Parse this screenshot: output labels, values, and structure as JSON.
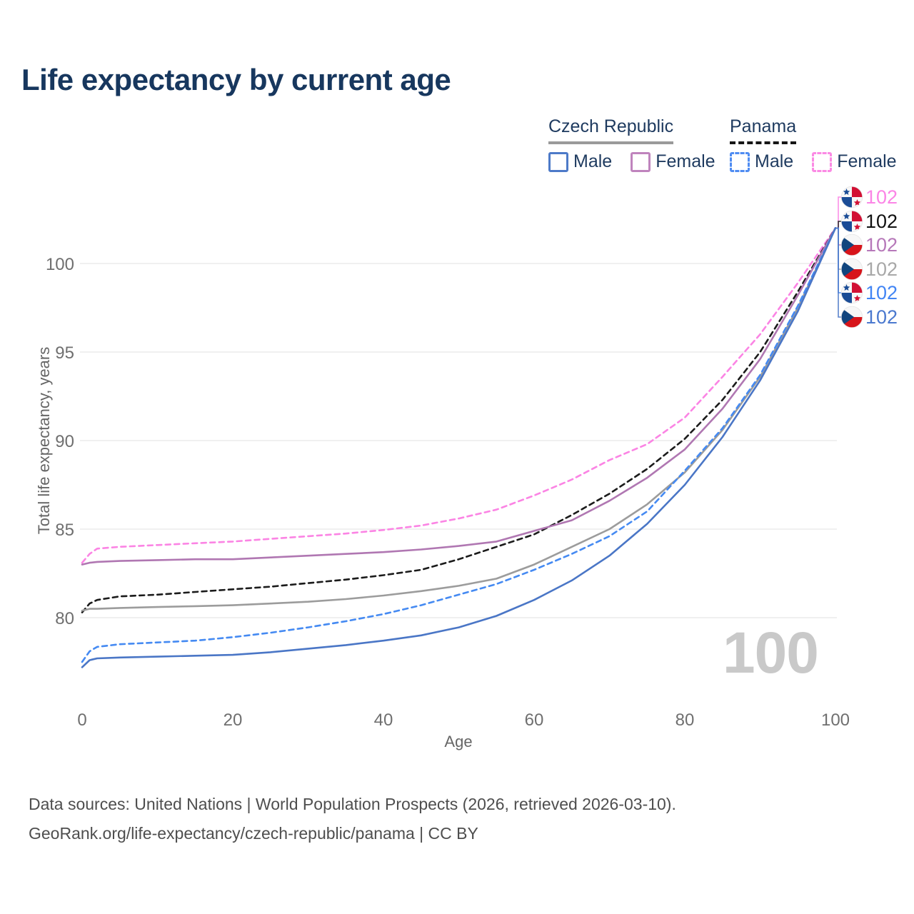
{
  "title": "Life expectancy by current age",
  "legend": {
    "groups": [
      {
        "title": "Czech Republic",
        "line": {
          "color": "#9a9a9a",
          "dashed": false
        },
        "items": [
          {
            "label": "Male",
            "color": "#4d7ac8",
            "dashed": false
          },
          {
            "label": "Female",
            "color": "#bf84bd",
            "dashed": false
          }
        ]
      },
      {
        "title": "Panama",
        "line": {
          "color": "#161616",
          "dashed": true
        },
        "items": [
          {
            "label": "Male",
            "color": "#4f8cf2",
            "dashed": true
          },
          {
            "label": "Female",
            "color": "#fb8ae4",
            "dashed": true
          }
        ]
      }
    ]
  },
  "chart_data": {
    "type": "line",
    "title": "Life expectancy by current age",
    "xlabel": "Age",
    "ylabel": "Total life expectancy, years",
    "x_ticks": [
      0,
      20,
      40,
      60,
      80,
      100
    ],
    "y_ticks": [
      80,
      85,
      90,
      95,
      100
    ],
    "xlim": [
      0,
      100
    ],
    "ylim": [
      77,
      103.5
    ],
    "grid": "horizontal",
    "watermark": "100",
    "ages": [
      0,
      1,
      2,
      5,
      10,
      15,
      20,
      25,
      30,
      35,
      40,
      45,
      50,
      55,
      60,
      65,
      70,
      75,
      80,
      85,
      90,
      95,
      100
    ],
    "series": [
      {
        "id": "panama-female",
        "name": "Panama Female",
        "country": "Panama",
        "sex": "Female",
        "color": "#fb84e4",
        "label_color": "#fb85e6",
        "dashed": true,
        "flag": "panama",
        "end_label": "102",
        "values": [
          83.1,
          83.6,
          83.9,
          84.0,
          84.1,
          84.2,
          84.3,
          84.45,
          84.6,
          84.75,
          84.95,
          85.2,
          85.6,
          86.1,
          86.9,
          87.8,
          88.9,
          89.8,
          91.3,
          93.6,
          96.0,
          98.9,
          102
        ]
      },
      {
        "id": "panama-total",
        "name": "Panama",
        "country": "Panama",
        "sex": "Both",
        "color": "#1b1b1b",
        "label_color": "#111111",
        "dashed": true,
        "flag": "panama",
        "end_label": "102",
        "values": [
          80.3,
          80.8,
          81.0,
          81.2,
          81.3,
          81.45,
          81.6,
          81.75,
          81.95,
          82.15,
          82.4,
          82.7,
          83.3,
          84.0,
          84.7,
          85.8,
          87.0,
          88.4,
          90.1,
          92.3,
          95.0,
          98.4,
          102
        ]
      },
      {
        "id": "czech-female",
        "name": "Czech Republic Female",
        "country": "Czech Republic",
        "sex": "Female",
        "color": "#b077b2",
        "label_color": "#b678b9",
        "dashed": false,
        "flag": "czech",
        "end_label": "102",
        "values": [
          83.0,
          83.1,
          83.15,
          83.2,
          83.25,
          83.3,
          83.3,
          83.4,
          83.5,
          83.6,
          83.7,
          83.85,
          84.05,
          84.3,
          84.9,
          85.5,
          86.6,
          87.9,
          89.5,
          91.8,
          94.6,
          98.2,
          102
        ]
      },
      {
        "id": "czech-total",
        "name": "Czech Republic",
        "country": "Czech Republic",
        "sex": "Both",
        "color": "#9c9c9c",
        "label_color": "#a8a8a8",
        "dashed": false,
        "flag": "czech",
        "end_label": "102",
        "values": [
          80.4,
          80.5,
          80.5,
          80.55,
          80.6,
          80.65,
          80.7,
          80.8,
          80.9,
          81.05,
          81.25,
          81.5,
          81.8,
          82.2,
          83.0,
          84.0,
          85.0,
          86.4,
          88.2,
          90.6,
          93.6,
          97.5,
          102
        ]
      },
      {
        "id": "panama-male",
        "name": "Panama Male",
        "country": "Panama",
        "sex": "Male",
        "color": "#458af2",
        "label_color": "#4285f4",
        "dashed": true,
        "flag": "panama",
        "end_label": "102",
        "values": [
          77.5,
          78.1,
          78.35,
          78.5,
          78.6,
          78.7,
          78.9,
          79.15,
          79.45,
          79.8,
          80.2,
          80.7,
          81.3,
          81.9,
          82.7,
          83.6,
          84.6,
          86.0,
          88.3,
          90.7,
          93.7,
          97.6,
          102
        ]
      },
      {
        "id": "czech-male",
        "name": "Czech Republic Male",
        "country": "Czech Republic",
        "sex": "Male",
        "color": "#4a76c6",
        "label_color": "#4b79cf",
        "dashed": false,
        "flag": "czech",
        "end_label": "102",
        "values": [
          77.2,
          77.6,
          77.7,
          77.75,
          77.8,
          77.85,
          77.9,
          78.05,
          78.25,
          78.45,
          78.7,
          79.0,
          79.45,
          80.1,
          81.0,
          82.1,
          83.5,
          85.3,
          87.5,
          90.2,
          93.4,
          97.3,
          102
        ]
      }
    ],
    "flag_colors": {
      "czech": {
        "white": "#f7f7f7",
        "red": "#d7141a",
        "blue": "#11457e"
      },
      "panama": {
        "white": "#f7f7f7",
        "red": "#d21034",
        "blue": "#1a4c96"
      }
    }
  },
  "footer": {
    "line1": "Data sources: United Nations | World Population Prospects (2026, retrieved 2026-03-10).",
    "line2": "GeoRank.org/life-expectancy/czech-republic/panama | CC BY"
  }
}
